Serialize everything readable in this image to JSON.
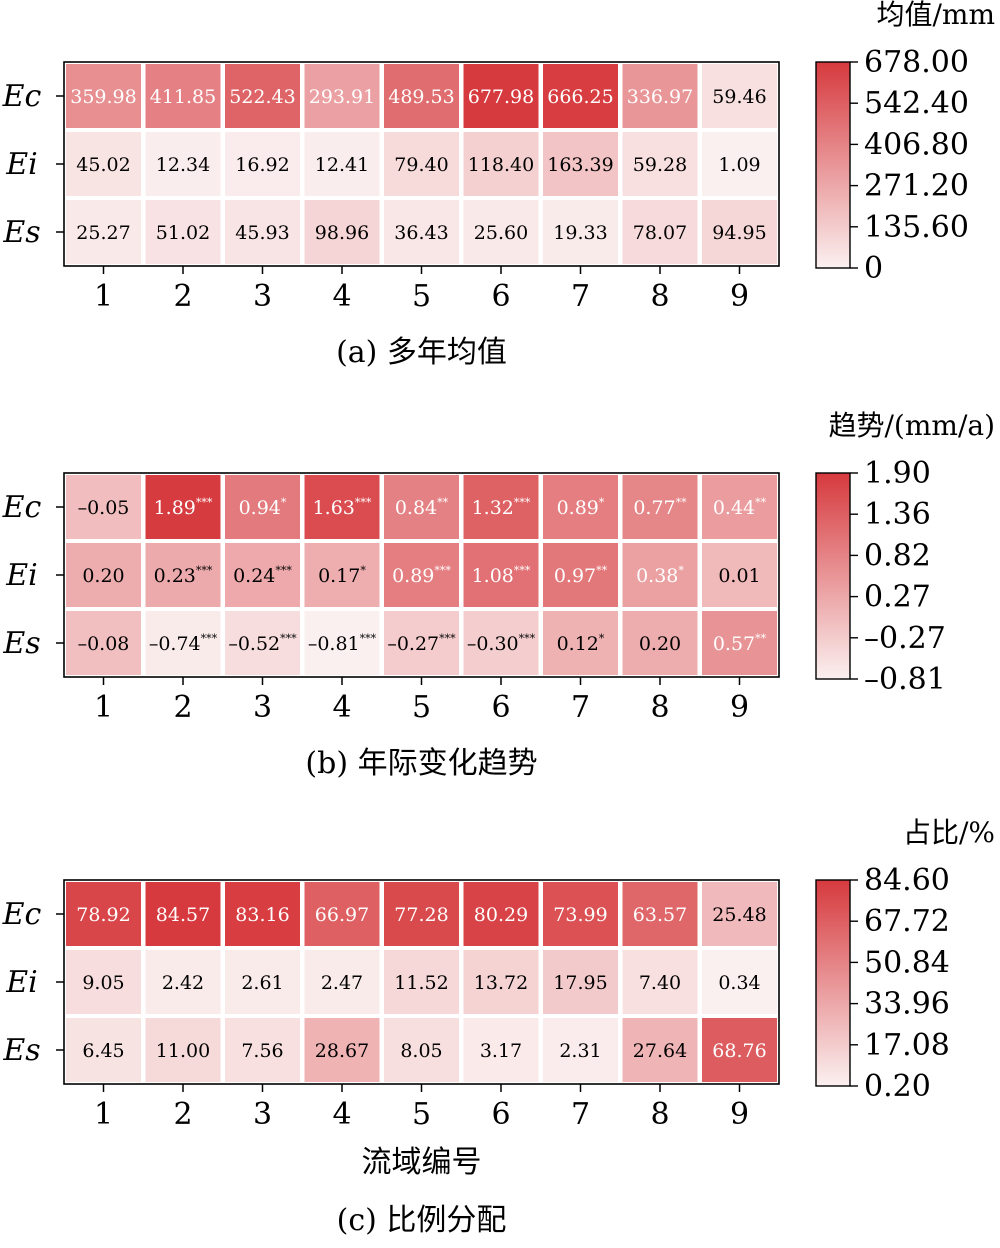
{
  "chart_data": [
    {
      "type": "heatmap",
      "caption": "(a) 多年均值",
      "xlabel": "",
      "colorbar": {
        "title": "均值/mm",
        "ticks": [
          "678.00",
          "542.40",
          "406.80",
          "271.20",
          "135.60",
          "0"
        ],
        "min": 0,
        "max": 678.0
      },
      "rows": [
        "Ec",
        "Ei",
        "Es"
      ],
      "columns": [
        "1",
        "2",
        "3",
        "4",
        "5",
        "6",
        "7",
        "8",
        "9"
      ],
      "values": [
        [
          359.98,
          411.85,
          522.43,
          293.91,
          489.53,
          677.98,
          666.25,
          336.97,
          59.46
        ],
        [
          45.02,
          12.34,
          16.92,
          12.41,
          79.4,
          118.4,
          163.39,
          59.28,
          1.09
        ],
        [
          25.27,
          51.02,
          45.93,
          98.96,
          36.43,
          25.6,
          19.33,
          78.07,
          94.95
        ]
      ],
      "labels": [
        [
          "359.98",
          "411.85",
          "522.43",
          "293.91",
          "489.53",
          "677.98",
          "666.25",
          "336.97",
          "59.46"
        ],
        [
          "45.02",
          "12.34",
          "16.92",
          "12.41",
          "79.40",
          "118.40",
          "163.39",
          "59.28",
          "1.09"
        ],
        [
          "25.27",
          "51.02",
          "45.93",
          "98.96",
          "36.43",
          "25.60",
          "19.33",
          "78.07",
          "94.95"
        ]
      ],
      "significance": [
        [
          "",
          "",
          "",
          "",
          "",
          "",
          "",
          "",
          ""
        ],
        [
          "",
          "",
          "",
          "",
          "",
          "",
          "",
          "",
          ""
        ],
        [
          "",
          "",
          "",
          "",
          "",
          "",
          "",
          "",
          ""
        ]
      ]
    },
    {
      "type": "heatmap",
      "caption": "(b) 年际变化趋势",
      "xlabel": "",
      "colorbar": {
        "title": "趋势/(mm/a)",
        "ticks": [
          "1.90",
          "1.36",
          "0.82",
          "0.27",
          "–0.27",
          "–0.81"
        ],
        "min": -0.81,
        "max": 1.9
      },
      "rows": [
        "Ec",
        "Ei",
        "Es"
      ],
      "columns": [
        "1",
        "2",
        "3",
        "4",
        "5",
        "6",
        "7",
        "8",
        "9"
      ],
      "values": [
        [
          -0.05,
          1.89,
          0.94,
          1.63,
          0.84,
          1.32,
          0.89,
          0.77,
          0.44
        ],
        [
          0.2,
          0.23,
          0.24,
          0.17,
          0.89,
          1.08,
          0.97,
          0.38,
          0.01
        ],
        [
          -0.08,
          -0.74,
          -0.52,
          -0.81,
          -0.27,
          -0.3,
          0.12,
          0.2,
          0.57
        ]
      ],
      "labels": [
        [
          "–0.05",
          "1.89",
          "0.94",
          "1.63",
          "0.84",
          "1.32",
          "0.89",
          "0.77",
          "0.44"
        ],
        [
          "0.20",
          "0.23",
          "0.24",
          "0.17",
          "0.89",
          "1.08",
          "0.97",
          "0.38",
          "0.01"
        ],
        [
          "–0.08",
          "–0.74",
          "–0.52",
          "–0.81",
          "–0.27",
          "–0.30",
          "0.12",
          "0.20",
          "0.57"
        ]
      ],
      "significance": [
        [
          "",
          "***",
          "*",
          "***",
          "**",
          "***",
          "*",
          "**",
          "**"
        ],
        [
          "",
          "***",
          "***",
          "*",
          "***",
          "***",
          "**",
          "*",
          ""
        ],
        [
          "",
          "***",
          "***",
          "***",
          "***",
          "***",
          "*",
          "",
          "**"
        ]
      ]
    },
    {
      "type": "heatmap",
      "caption": "(c) 比例分配",
      "xlabel": "流域编号",
      "colorbar": {
        "title": "占比/%",
        "ticks": [
          "84.60",
          "67.72",
          "50.84",
          "33.96",
          "17.08",
          "0.20"
        ],
        "min": 0.2,
        "max": 84.6
      },
      "rows": [
        "Ec",
        "Ei",
        "Es"
      ],
      "columns": [
        "1",
        "2",
        "3",
        "4",
        "5",
        "6",
        "7",
        "8",
        "9"
      ],
      "values": [
        [
          78.92,
          84.57,
          83.16,
          66.97,
          77.28,
          80.29,
          73.99,
          63.57,
          25.48
        ],
        [
          9.05,
          2.42,
          2.61,
          2.47,
          11.52,
          13.72,
          17.95,
          7.4,
          0.34
        ],
        [
          6.45,
          11.0,
          7.56,
          28.67,
          8.05,
          3.17,
          2.31,
          27.64,
          68.76
        ]
      ],
      "labels": [
        [
          "78.92",
          "84.57",
          "83.16",
          "66.97",
          "77.28",
          "80.29",
          "73.99",
          "63.57",
          "25.48"
        ],
        [
          "9.05",
          "2.42",
          "2.61",
          "2.47",
          "11.52",
          "13.72",
          "17.95",
          "7.40",
          "0.34"
        ],
        [
          "6.45",
          "11.00",
          "7.56",
          "28.67",
          "8.05",
          "3.17",
          "2.31",
          "27.64",
          "68.76"
        ]
      ],
      "significance": [
        [
          "",
          "",
          "",
          "",
          "",
          "",
          "",
          "",
          ""
        ],
        [
          "",
          "",
          "",
          "",
          "",
          "",
          "",
          "",
          ""
        ],
        [
          "",
          "",
          "",
          "",
          "",
          "",
          "",
          "",
          ""
        ]
      ]
    }
  ],
  "colors": {
    "low": "#fbf0f0",
    "high": "#d63a3e",
    "gap": "#ffffff",
    "frame": "#000000"
  }
}
